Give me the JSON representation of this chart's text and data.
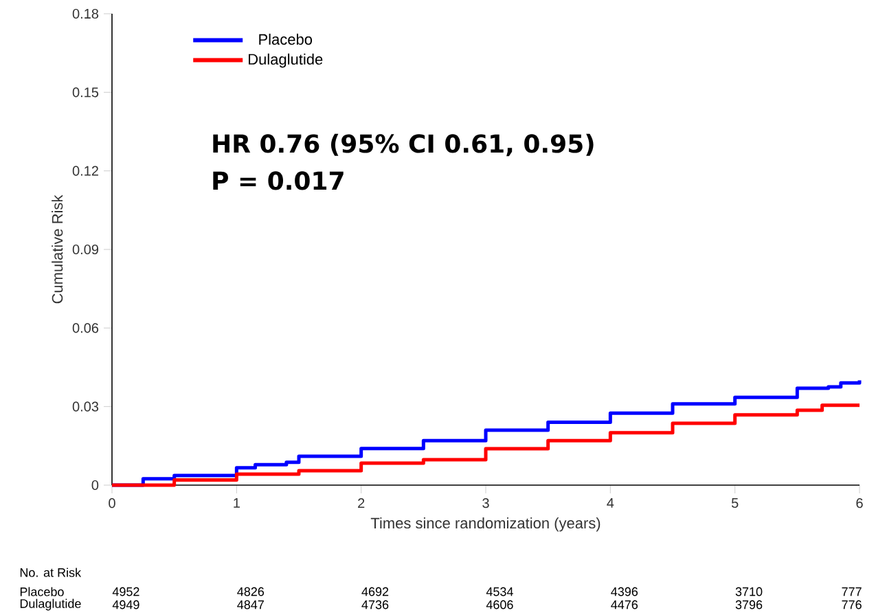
{
  "chart_data": {
    "type": "step",
    "xlabel": "Times since randomization (years)",
    "ylabel": "Cumulative Risk",
    "xlim": [
      0,
      6
    ],
    "ylim": [
      0,
      0.18
    ],
    "xticks": [
      0,
      1,
      2,
      3,
      4,
      5,
      6
    ],
    "yticks": [
      0,
      0.03,
      0.06,
      0.09,
      0.12,
      0.15,
      0.18
    ],
    "grid": false,
    "legend": "top left",
    "line_style": "solid",
    "marker": "none",
    "series": [
      {
        "name": "Placebo",
        "color": "#0000ff",
        "x": [
          0,
          0.25,
          0.5,
          1,
          1.15,
          1.4,
          1.5,
          2,
          2.5,
          3,
          3.5,
          4,
          4.5,
          5,
          5.5,
          5.75,
          5.85,
          6
        ],
        "values": [
          0,
          0.0024,
          0.0037,
          0.0066,
          0.0078,
          0.0087,
          0.011,
          0.014,
          0.017,
          0.021,
          0.024,
          0.0275,
          0.031,
          0.0335,
          0.037,
          0.0375,
          0.039,
          0.04
        ]
      },
      {
        "name": "Dulaglutide",
        "color": "#ff0000",
        "x": [
          0,
          0.5,
          1,
          1.5,
          2,
          2.5,
          3,
          3.5,
          4,
          4.5,
          5,
          5.5,
          5.7,
          6
        ],
        "values": [
          0,
          0.002,
          0.0042,
          0.0055,
          0.0084,
          0.0097,
          0.0139,
          0.017,
          0.02,
          0.0236,
          0.0268,
          0.0286,
          0.0305,
          0.0305
        ]
      }
    ],
    "annotations": [
      "HR 0.76 (95% CI 0.61, 0.95)",
      "P = 0.017",
      "No. at Risk",
      "4952",
      "4826",
      "4692",
      "4534",
      "4396",
      "3710",
      "777",
      "4949",
      "4847",
      "4736",
      "4606",
      "4476",
      "3796",
      "776"
    ]
  }
}
